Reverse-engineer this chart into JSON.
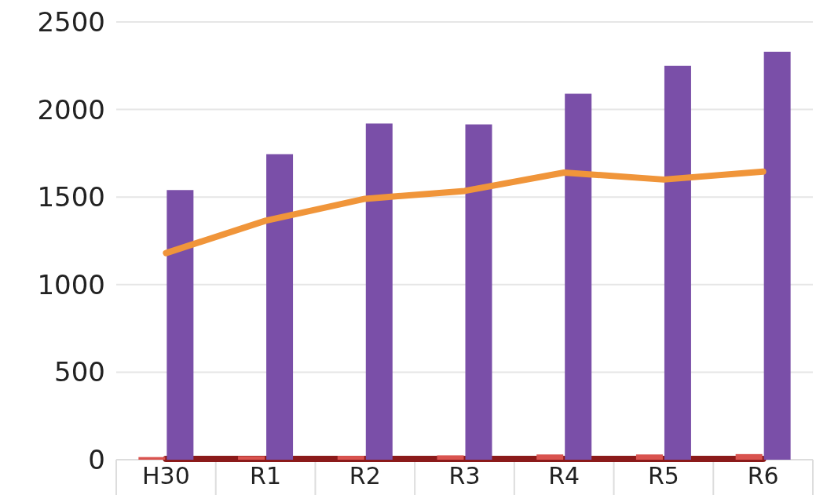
{
  "chart_data": {
    "type": "bar",
    "categories": [
      "H30",
      "R1",
      "R2",
      "R3",
      "R4",
      "R5",
      "R6"
    ],
    "series": [
      {
        "type": "line",
        "color": "#8b1a1a",
        "values": [
          5,
          5,
          5,
          5,
          5,
          5,
          5
        ]
      },
      {
        "color": "#d9534f",
        "values": [
          15,
          20,
          22,
          25,
          30,
          30,
          32
        ]
      },
      {
        "color": "#7a4fa8",
        "values": [
          1540,
          1745,
          1920,
          1915,
          2090,
          2250,
          2330
        ]
      },
      {
        "type": "line",
        "color": "#f0953a",
        "values": [
          1180,
          1365,
          1490,
          1535,
          1640,
          1600,
          1645
        ]
      }
    ],
    "ylim": [
      0,
      2500
    ],
    "yticks": [
      0,
      500,
      1000,
      1500,
      2000,
      2500
    ],
    "grid": "y"
  }
}
